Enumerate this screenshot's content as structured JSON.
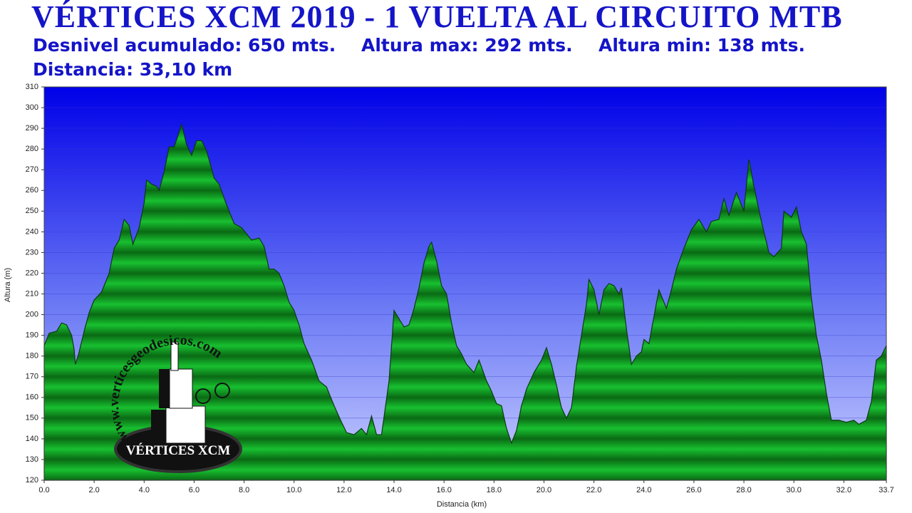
{
  "chart_data": {
    "type": "area",
    "title": "VÉRTICES XCM 2019 - 1 VUELTA AL CIRCUITO MTB",
    "subtitle": [
      "Desnivel acumulado: 650 mts.",
      "Altura max: 292 mts.",
      "Altura min: 138 mts.",
      "Distancia: 33,10 km"
    ],
    "x_label": "Distancia  (km)",
    "y_label": "Altura (m)",
    "logo": {
      "url": "www.verticesgeodesicos.com",
      "name": "VÉRTICES XCM"
    },
    "color": "#10a820",
    "grid": true,
    "xlim": [
      0,
      33.7
    ],
    "ylim": [
      120,
      310
    ],
    "xticks": [
      {
        "value": 0,
        "label": "0.0"
      },
      {
        "value": 2,
        "label": "2.0"
      },
      {
        "value": 4,
        "label": "4.0"
      },
      {
        "value": 6,
        "label": "6.0"
      },
      {
        "value": 8,
        "label": "8.0"
      },
      {
        "value": 10,
        "label": "10.0"
      },
      {
        "value": 12,
        "label": "12.0"
      },
      {
        "value": 14,
        "label": "14.0"
      },
      {
        "value": 16,
        "label": "16.0"
      },
      {
        "value": 18,
        "label": "18.0"
      },
      {
        "value": 20,
        "label": "20.0"
      },
      {
        "value": 22,
        "label": "22.0"
      },
      {
        "value": 24,
        "label": "24.0"
      },
      {
        "value": 26,
        "label": "26.0"
      },
      {
        "value": 28,
        "label": "28.0"
      },
      {
        "value": 30,
        "label": "30.0"
      },
      {
        "value": 32,
        "label": "32.0"
      },
      33.7
    ],
    "yticks": [
      120,
      130,
      140,
      150,
      160,
      170,
      180,
      190,
      200,
      210,
      220,
      230,
      240,
      250,
      260,
      270,
      280,
      290,
      300,
      310
    ],
    "x": [
      0,
      0.2,
      0.5,
      0.7,
      0.9,
      1.1,
      1.2,
      1.25,
      1.4,
      1.6,
      1.8,
      2.0,
      2.3,
      2.6,
      2.8,
      3.0,
      3.2,
      3.4,
      3.55,
      3.8,
      4.0,
      4.1,
      4.3,
      4.5,
      4.6,
      4.8,
      5.0,
      5.2,
      5.4,
      5.5,
      5.7,
      5.9,
      6.1,
      6.3,
      6.5,
      6.8,
      7.0,
      7.3,
      7.6,
      7.9,
      8.1,
      8.3,
      8.6,
      8.8,
      9.0,
      9.2,
      9.4,
      9.6,
      9.8,
      10.0,
      10.2,
      10.4,
      10.7,
      11.0,
      11.3,
      11.6,
      11.9,
      12.1,
      12.4,
      12.7,
      12.9,
      13.1,
      13.3,
      13.5,
      13.8,
      14.0,
      14.2,
      14.4,
      14.6,
      14.8,
      15.0,
      15.2,
      15.4,
      15.5,
      15.7,
      15.9,
      16.1,
      16.3,
      16.5,
      16.7,
      16.9,
      17.2,
      17.4,
      17.7,
      17.9,
      18.1,
      18.3,
      18.5,
      18.7,
      18.9,
      19.1,
      19.3,
      19.6,
      19.9,
      20.1,
      20.3,
      20.5,
      20.7,
      20.9,
      21.1,
      21.3,
      21.5,
      21.7,
      21.8,
      22.0,
      22.2,
      22.4,
      22.6,
      22.8,
      23.0,
      23.1,
      23.3,
      23.5,
      23.7,
      23.9,
      24.0,
      24.2,
      24.4,
      24.6,
      24.9,
      25.1,
      25.3,
      25.6,
      25.9,
      26.2,
      26.5,
      26.7,
      27.0,
      27.2,
      27.4,
      27.7,
      28.0,
      28.2,
      28.4,
      28.7,
      29.0,
      29.2,
      29.5,
      29.6,
      29.9,
      30.1,
      30.3,
      30.5,
      30.7,
      30.9,
      31.1,
      31.3,
      31.5,
      31.8,
      32.1,
      32.4,
      32.6,
      32.9,
      33.1,
      33.3,
      33.5,
      33.7
    ],
    "values": [
      185,
      191,
      192,
      196,
      195,
      190,
      183,
      176,
      182,
      192,
      201,
      207,
      211,
      220,
      232,
      236,
      246,
      243,
      234,
      242,
      254,
      265,
      263,
      262,
      260,
      269,
      281,
      281,
      288,
      292,
      282,
      277,
      284,
      284,
      279,
      266,
      263,
      253,
      244,
      242,
      239,
      236,
      237,
      233,
      222,
      222,
      220,
      214,
      206,
      202,
      195,
      186,
      178,
      168,
      165,
      156,
      148,
      143,
      142,
      145,
      142,
      151,
      142,
      142,
      168,
      202,
      198,
      194,
      195,
      203,
      213,
      225,
      233,
      235,
      226,
      214,
      210,
      196,
      185,
      181,
      176,
      172,
      178,
      168,
      163,
      157,
      156,
      145,
      138,
      144,
      156,
      164,
      172,
      178,
      184,
      176,
      166,
      155,
      150,
      155,
      175,
      190,
      205,
      217,
      212,
      200,
      212,
      215,
      214,
      210,
      213,
      193,
      176,
      180,
      182,
      188,
      186,
      199,
      212,
      203,
      212,
      222,
      232,
      241,
      246,
      240,
      245,
      246,
      256,
      248,
      259,
      250,
      275,
      262,
      245,
      230,
      228,
      232,
      250,
      247,
      252,
      240,
      234,
      208,
      190,
      178,
      162,
      149,
      149,
      148,
      149,
      147,
      149,
      158,
      178,
      180,
      185
    ]
  }
}
